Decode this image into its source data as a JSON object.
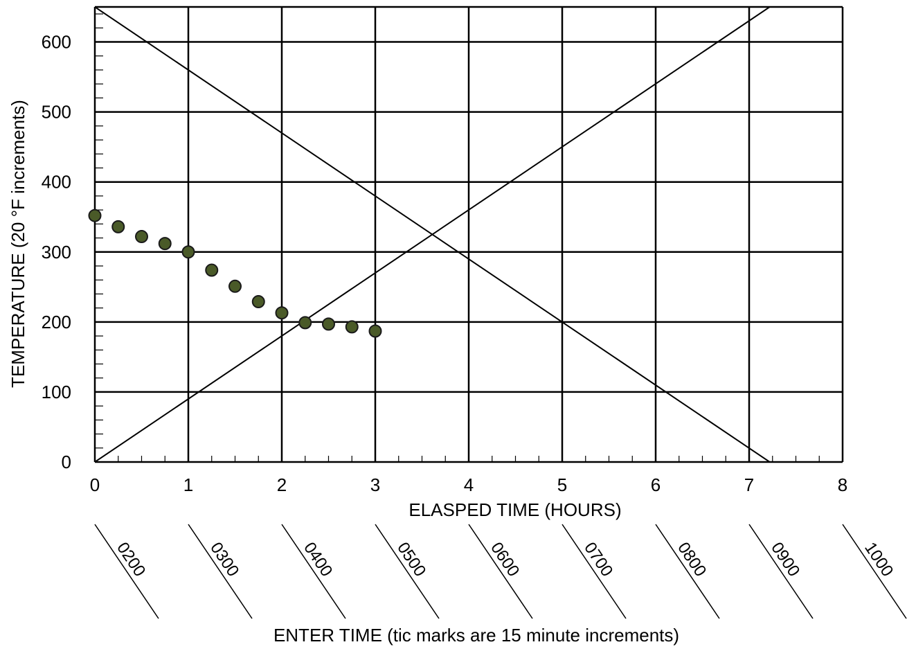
{
  "chart_data": {
    "type": "scatter",
    "title": "",
    "xlabel": "ELASPED TIME (HOURS)",
    "ylabel": "TEMPERATURE (20 °F increments)",
    "xlim": [
      0,
      8
    ],
    "ylim": [
      0,
      650
    ],
    "x_ticks": [
      "0",
      "1",
      "2",
      "3",
      "4",
      "5",
      "6",
      "7",
      "8"
    ],
    "y_ticks": [
      "0",
      "100",
      "200",
      "300",
      "400",
      "500",
      "600"
    ],
    "x_tick_values": [
      0,
      1,
      2,
      3,
      4,
      5,
      6,
      7,
      8
    ],
    "y_tick_values": [
      0,
      100,
      200,
      300,
      400,
      500,
      600
    ],
    "x_minor_step": 0.25,
    "y_minor_step": 20,
    "grid": true,
    "series": [
      {
        "x": [
          0,
          0.25,
          0.5,
          0.75,
          1,
          1.25,
          1.5,
          1.75,
          2,
          2.25,
          2.5,
          2.75,
          3
        ],
        "y": [
          352,
          336,
          322,
          312,
          300,
          274,
          251,
          229,
          213,
          199,
          197,
          193,
          187
        ],
        "color": "#4a5a28"
      }
    ],
    "reference_lines": [
      {
        "x": [
          0,
          7.22
        ],
        "y": [
          650,
          0
        ]
      },
      {
        "x": [
          0,
          7.22
        ],
        "y": [
          0,
          650
        ]
      }
    ],
    "clock_axis": {
      "label": "ENTER TIME (tic marks are 15 minute increments)",
      "times": [
        "0200",
        "0300",
        "0400",
        "0500",
        "0600",
        "0700",
        "0800",
        "0900",
        "1000"
      ]
    },
    "colors": {
      "marker": "#4a5a28",
      "marker_edge": "#1a1a1a",
      "lines": "#000000"
    }
  }
}
